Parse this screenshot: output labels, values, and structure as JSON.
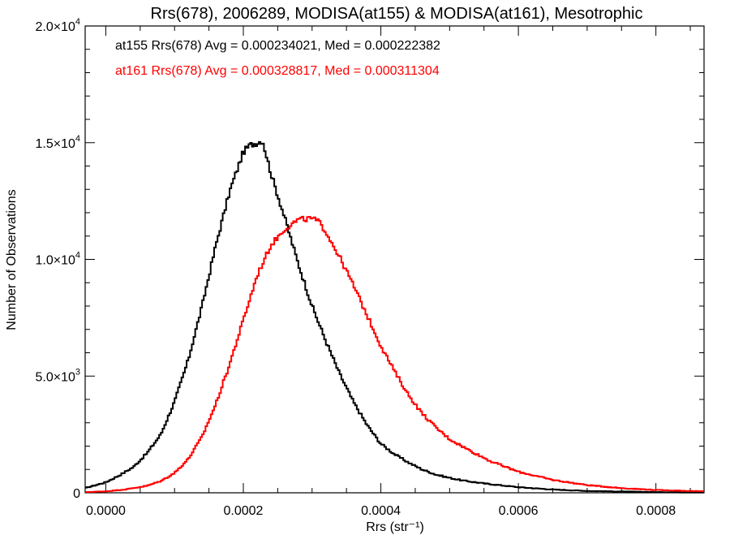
{
  "chart_data": {
    "type": "line",
    "title": "Rrs(678), 2006289, MODISA(at155) & MODISA(at161), Mesotrophic",
    "xlabel": "Rrs (str⁻¹)",
    "ylabel": "Number of Observations",
    "xlim": [
      -3e-05,
      0.00087
    ],
    "ylim": [
      0,
      20000
    ],
    "x_ticks": [
      {
        "value": 0.0,
        "label": "0.0000"
      },
      {
        "value": 0.0002,
        "label": "0.0002"
      },
      {
        "value": 0.0004,
        "label": "0.0004"
      },
      {
        "value": 0.0006,
        "label": "0.0006"
      },
      {
        "value": 0.0008,
        "label": "0.0008"
      }
    ],
    "y_ticks": [
      {
        "value": 0,
        "mant": "0",
        "exp": ""
      },
      {
        "value": 5000,
        "mant": "5.0×10",
        "exp": "3"
      },
      {
        "value": 10000,
        "mant": "1.0×10",
        "exp": "4"
      },
      {
        "value": 15000,
        "mant": "1.5×10",
        "exp": "4"
      },
      {
        "value": 20000,
        "mant": "2.0×10",
        "exp": "4"
      }
    ],
    "grid": false,
    "legend_position": "top-left",
    "series": [
      {
        "name": "at155",
        "legend_label": "at155 Rrs(678) Avg = 0.000234021, Med = 0.000222382",
        "color": "#000000",
        "x": [
          -3e-05,
          0.0,
          2e-05,
          4e-05,
          6e-05,
          8e-05,
          0.0001,
          0.00012,
          0.00014,
          0.00016,
          0.00018,
          0.0002,
          0.00021,
          0.00022,
          0.000228,
          0.00024,
          0.00026,
          0.00028,
          0.0003,
          0.00032,
          0.00034,
          0.00036,
          0.00038,
          0.0004,
          0.00042,
          0.00044,
          0.00046,
          0.00048,
          0.0005,
          0.00052,
          0.00055,
          0.0006,
          0.00065,
          0.0007,
          0.0008,
          0.00087
        ],
        "y": [
          200,
          450,
          750,
          1100,
          1700,
          2500,
          3900,
          5700,
          8000,
          10600,
          12900,
          14600,
          14900,
          15000,
          15100,
          13700,
          11800,
          9800,
          8000,
          6500,
          5100,
          3900,
          2900,
          2100,
          1650,
          1300,
          1000,
          780,
          640,
          520,
          400,
          240,
          140,
          80,
          30,
          10
        ]
      },
      {
        "name": "at161",
        "legend_label": "at161 Rrs(678) Avg = 0.000328817, Med = 0.000311304",
        "color": "#ff0000",
        "x": [
          -3e-05,
          0.0,
          3e-05,
          6e-05,
          8e-05,
          0.0001,
          0.00012,
          0.00014,
          0.00016,
          0.00018,
          0.0002,
          0.00022,
          0.00024,
          0.00026,
          0.00028,
          0.0003,
          0.00031,
          0.00032,
          0.00034,
          0.00036,
          0.00038,
          0.0004,
          0.00042,
          0.00044,
          0.00046,
          0.00048,
          0.0005,
          0.00053,
          0.00056,
          0.0006,
          0.00065,
          0.0007,
          0.00075,
          0.0008,
          0.00087
        ],
        "y": [
          30,
          60,
          150,
          300,
          500,
          850,
          1450,
          2400,
          3800,
          5500,
          7400,
          9300,
          10600,
          11300,
          11700,
          11750,
          11600,
          11200,
          10100,
          8900,
          7600,
          6300,
          5200,
          4200,
          3400,
          2800,
          2300,
          1800,
          1350,
          900,
          550,
          330,
          200,
          120,
          60
        ]
      }
    ]
  }
}
